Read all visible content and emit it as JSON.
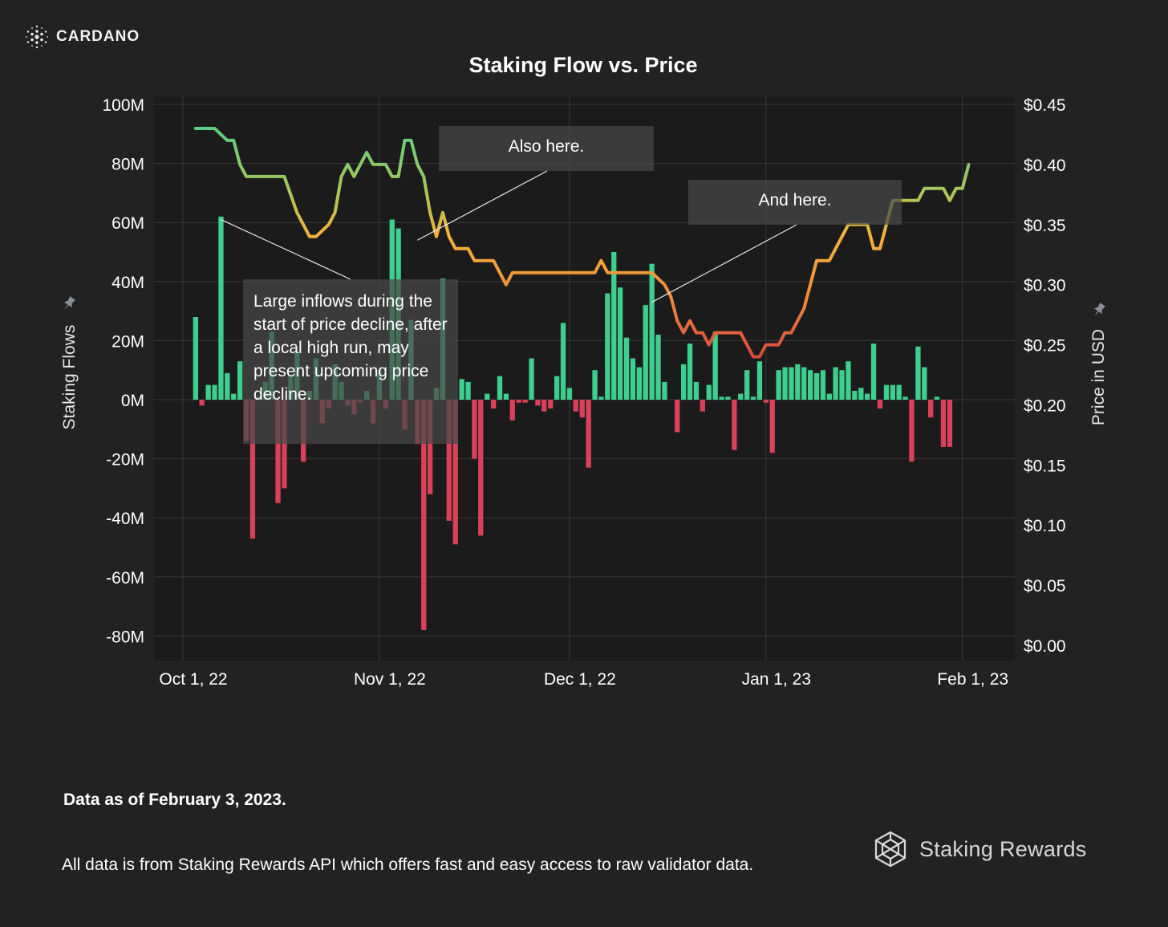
{
  "brand": {
    "name": "CARDANO",
    "icon": "cardano-logo-icon"
  },
  "chart_data": {
    "type": "bar+line",
    "title": "Staking Flow vs. Price",
    "y_left": {
      "label": "Staking Flows",
      "range": [
        -80000000,
        100000000
      ],
      "ticks": [
        "100M",
        "80M",
        "60M",
        "40M",
        "20M",
        "0M",
        "-20M",
        "-40M",
        "-60M",
        "-80M"
      ],
      "tick_values": [
        100000000,
        80000000,
        60000000,
        40000000,
        20000000,
        0,
        -20000000,
        -40000000,
        -60000000,
        -80000000
      ]
    },
    "y_right": {
      "label": "Price in USD",
      "range": [
        0,
        0.45
      ],
      "ticks": [
        "$0.45",
        "$0.40",
        "$0.35",
        "$0.30",
        "$0.25",
        "$0.20",
        "$0.15",
        "$0.10",
        "$0.05",
        "$0.00"
      ],
      "tick_values": [
        0.45,
        0.4,
        0.35,
        0.3,
        0.25,
        0.2,
        0.15,
        0.1,
        0.05,
        0.0
      ]
    },
    "x_axis": {
      "start": "2022-10-01",
      "ticks": [
        "Oct 1, 22",
        "Nov 1, 22",
        "Dec 1, 22",
        "Jan 1, 23",
        "Feb 1, 23"
      ],
      "tick_dates": [
        "2022-10-01",
        "2022-11-01",
        "2022-12-01",
        "2023-01-01",
        "2023-02-01"
      ]
    },
    "grid": true,
    "colors": {
      "inflow": "#3ecf8e",
      "outflow": "#d9415a",
      "price_high": "#3ecf8e",
      "price_mid": "#f5a03a",
      "price_low": "#d9423f"
    },
    "flows": {
      "start_date": "2022-10-03",
      "values_millions": [
        28,
        -2,
        5,
        5,
        62,
        9,
        2,
        13,
        -14,
        -47,
        1,
        6,
        23,
        -35,
        -30,
        8,
        16,
        -21,
        3,
        14,
        -8,
        -3,
        12,
        6,
        -2,
        -5,
        -1,
        3,
        -8,
        10,
        -3,
        61,
        58,
        -10,
        27,
        -15,
        -78,
        -32,
        4,
        41,
        -41,
        -49,
        7,
        6,
        -20,
        -46,
        2,
        -3,
        8,
        2,
        -7,
        -1,
        -1,
        14,
        -2,
        -4,
        -3,
        8,
        26,
        4,
        -4,
        -6,
        -23,
        10,
        1,
        36,
        50,
        38,
        21,
        14,
        11,
        32,
        46,
        22,
        6,
        0,
        -11,
        12,
        19,
        6,
        -4,
        5,
        23,
        1,
        1,
        -17,
        2,
        10,
        1,
        13,
        -1,
        -18,
        10,
        11,
        11,
        12,
        11,
        10,
        9,
        10,
        2,
        11,
        10,
        13,
        3,
        4,
        2,
        19,
        -3,
        5,
        5,
        5,
        1,
        -21,
        18,
        11,
        -6,
        1,
        -16,
        -16
      ]
    },
    "price": [
      [
        "2022-10-03",
        0.43
      ],
      [
        "2022-10-05",
        0.43
      ],
      [
        "2022-10-06",
        0.43
      ],
      [
        "2022-10-08",
        0.42
      ],
      [
        "2022-10-09",
        0.42
      ],
      [
        "2022-10-10",
        0.4
      ],
      [
        "2022-10-11",
        0.39
      ],
      [
        "2022-10-13",
        0.39
      ],
      [
        "2022-10-15",
        0.39
      ],
      [
        "2022-10-17",
        0.39
      ],
      [
        "2022-10-19",
        0.36
      ],
      [
        "2022-10-20",
        0.35
      ],
      [
        "2022-10-21",
        0.34
      ],
      [
        "2022-10-22",
        0.34
      ],
      [
        "2022-10-24",
        0.35
      ],
      [
        "2022-10-25",
        0.36
      ],
      [
        "2022-10-26",
        0.39
      ],
      [
        "2022-10-27",
        0.4
      ],
      [
        "2022-10-28",
        0.39
      ],
      [
        "2022-10-29",
        0.4
      ],
      [
        "2022-10-30",
        0.41
      ],
      [
        "2022-10-31",
        0.4
      ],
      [
        "2022-11-01",
        0.4
      ],
      [
        "2022-11-02",
        0.4
      ],
      [
        "2022-11-03",
        0.39
      ],
      [
        "2022-11-04",
        0.39
      ],
      [
        "2022-11-05",
        0.42
      ],
      [
        "2022-11-06",
        0.42
      ],
      [
        "2022-11-07",
        0.4
      ],
      [
        "2022-11-08",
        0.39
      ],
      [
        "2022-11-09",
        0.36
      ],
      [
        "2022-11-10",
        0.34
      ],
      [
        "2022-11-11",
        0.36
      ],
      [
        "2022-11-12",
        0.34
      ],
      [
        "2022-11-13",
        0.33
      ],
      [
        "2022-11-14",
        0.33
      ],
      [
        "2022-11-15",
        0.33
      ],
      [
        "2022-11-16",
        0.32
      ],
      [
        "2022-11-18",
        0.32
      ],
      [
        "2022-11-19",
        0.32
      ],
      [
        "2022-11-20",
        0.31
      ],
      [
        "2022-11-21",
        0.3
      ],
      [
        "2022-11-22",
        0.31
      ],
      [
        "2022-11-23",
        0.31
      ],
      [
        "2022-11-24",
        0.31
      ],
      [
        "2022-11-25",
        0.31
      ],
      [
        "2022-11-26",
        0.31
      ],
      [
        "2022-11-27",
        0.31
      ],
      [
        "2022-11-28",
        0.31
      ],
      [
        "2022-11-29",
        0.31
      ],
      [
        "2022-11-30",
        0.31
      ],
      [
        "2022-12-01",
        0.31
      ],
      [
        "2022-12-03",
        0.31
      ],
      [
        "2022-12-05",
        0.31
      ],
      [
        "2022-12-06",
        0.32
      ],
      [
        "2022-12-07",
        0.31
      ],
      [
        "2022-12-08",
        0.31
      ],
      [
        "2022-12-09",
        0.31
      ],
      [
        "2022-12-10",
        0.31
      ],
      [
        "2022-12-11",
        0.31
      ],
      [
        "2022-12-13",
        0.31
      ],
      [
        "2022-12-14",
        0.31
      ],
      [
        "2022-12-16",
        0.3
      ],
      [
        "2022-12-17",
        0.29
      ],
      [
        "2022-12-18",
        0.27
      ],
      [
        "2022-12-19",
        0.26
      ],
      [
        "2022-12-20",
        0.27
      ],
      [
        "2022-12-21",
        0.26
      ],
      [
        "2022-12-22",
        0.26
      ],
      [
        "2022-12-23",
        0.25
      ],
      [
        "2022-12-24",
        0.26
      ],
      [
        "2022-12-26",
        0.26
      ],
      [
        "2022-12-27",
        0.26
      ],
      [
        "2022-12-28",
        0.26
      ],
      [
        "2022-12-29",
        0.25
      ],
      [
        "2022-12-30",
        0.24
      ],
      [
        "2022-12-31",
        0.24
      ],
      [
        "2023-01-01",
        0.25
      ],
      [
        "2023-01-02",
        0.25
      ],
      [
        "2023-01-03",
        0.25
      ],
      [
        "2023-01-04",
        0.26
      ],
      [
        "2023-01-05",
        0.26
      ],
      [
        "2023-01-06",
        0.27
      ],
      [
        "2023-01-07",
        0.28
      ],
      [
        "2023-01-08",
        0.3
      ],
      [
        "2023-01-09",
        0.32
      ],
      [
        "2023-01-10",
        0.32
      ],
      [
        "2023-01-11",
        0.32
      ],
      [
        "2023-01-12",
        0.33
      ],
      [
        "2023-01-13",
        0.34
      ],
      [
        "2023-01-14",
        0.35
      ],
      [
        "2023-01-15",
        0.35
      ],
      [
        "2023-01-16",
        0.35
      ],
      [
        "2023-01-17",
        0.35
      ],
      [
        "2023-01-18",
        0.33
      ],
      [
        "2023-01-19",
        0.33
      ],
      [
        "2023-01-20",
        0.35
      ],
      [
        "2023-01-21",
        0.37
      ],
      [
        "2023-01-22",
        0.37
      ],
      [
        "2023-01-23",
        0.37
      ],
      [
        "2023-01-24",
        0.37
      ],
      [
        "2023-01-25",
        0.37
      ],
      [
        "2023-01-26",
        0.38
      ],
      [
        "2023-01-27",
        0.38
      ],
      [
        "2023-01-28",
        0.38
      ],
      [
        "2023-01-29",
        0.38
      ],
      [
        "2023-01-30",
        0.37
      ],
      [
        "2023-01-31",
        0.38
      ],
      [
        "2023-02-01",
        0.38
      ],
      [
        "2023-02-02",
        0.4
      ]
    ],
    "annotations": [
      {
        "id": "ann-1",
        "text": "Large inflows during the start of price decline, after a local high run, may present upcoming price decline.",
        "date": "2022-10-07",
        "value_millions": 61
      },
      {
        "id": "ann-2",
        "text": "Also here.",
        "date": "2022-11-07",
        "value_millions": 54
      },
      {
        "id": "ann-3",
        "text": "And here.",
        "date": "2022-12-14",
        "value_millions": 33
      }
    ]
  },
  "footer": {
    "date_note": "Data as of February 3, 2023.",
    "source_note": "All data is from Staking Rewards API which offers fast and easy access to raw validator data.",
    "logo_text": "Staking Rewards",
    "logo_icon": "staking-rewards-logo-icon"
  }
}
